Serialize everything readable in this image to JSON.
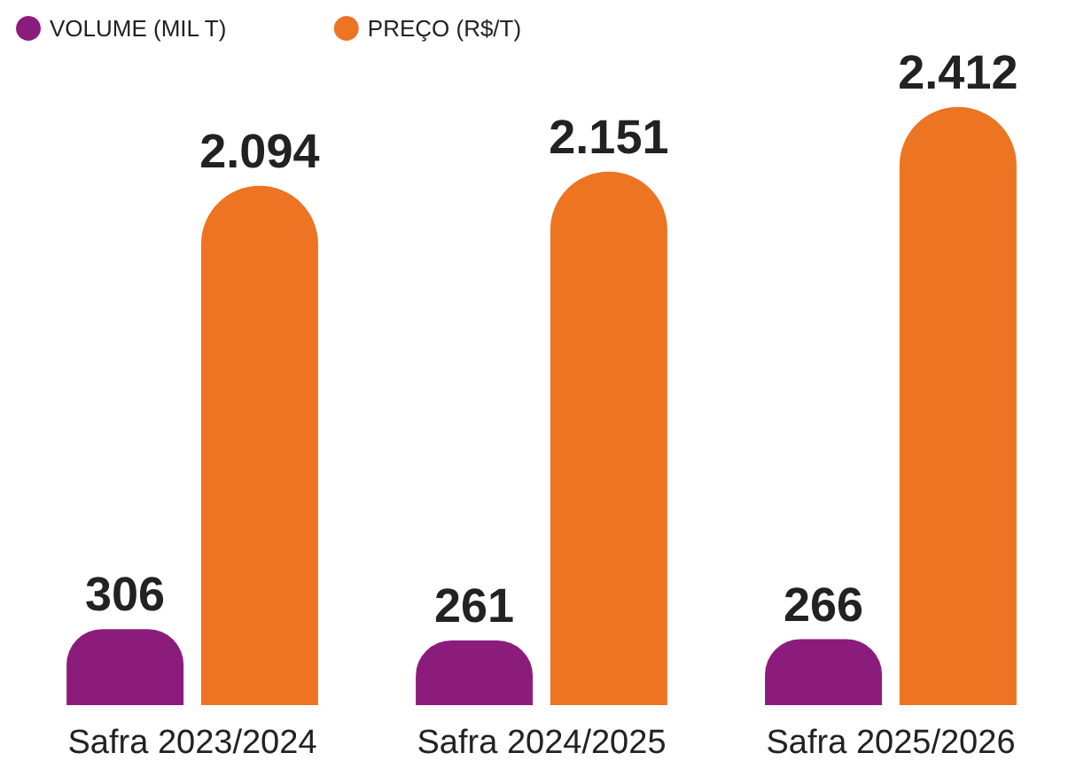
{
  "chart_data": {
    "type": "bar",
    "categories": [
      "Safra 2023/2024",
      "Safra 2024/2025",
      "Safra 2025/2026"
    ],
    "series": [
      {
        "name": "VOLUME (MIL T)",
        "color": "#8c1c7c",
        "values": [
          306,
          261,
          266
        ],
        "value_labels": [
          "306",
          "261",
          "266"
        ]
      },
      {
        "name": "PREÇO (R$/T)",
        "color": "#ec7422",
        "values": [
          2094,
          2151,
          2412
        ],
        "value_labels": [
          "2.094",
          "2.151",
          "2.412"
        ]
      }
    ],
    "legend": "top left"
  }
}
